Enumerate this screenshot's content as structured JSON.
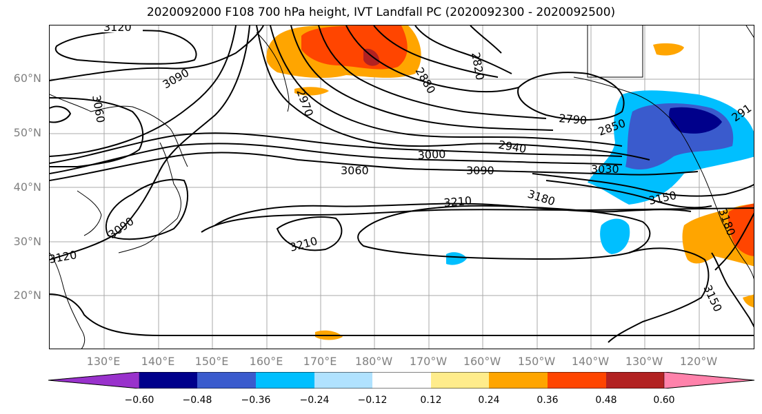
{
  "title": "2020092000 F108 700 hPa height, IVT Landfall PC (2020092300 - 2020092500)",
  "map": {
    "lat_labels": [
      "60°N",
      "50°N",
      "40°N",
      "30°N",
      "20°N"
    ],
    "lon_labels": [
      "130°E",
      "140°E",
      "150°E",
      "160°E",
      "170°E",
      "180°W",
      "170°W",
      "160°W",
      "150°W",
      "140°W",
      "130°W",
      "120°W"
    ],
    "contour_labels": [
      "3120",
      "3090",
      "3060",
      "2970",
      "2880",
      "2820",
      "2790",
      "2850",
      "2940",
      "3000",
      "3060",
      "3090",
      "3030",
      "3210",
      "3180",
      "3150",
      "3210",
      "3090",
      "3120",
      "3150",
      "3180",
      "291"
    ],
    "colors": {
      "grid": "#a8a8a8",
      "contour": "#000000",
      "coast": "#000000"
    }
  },
  "colorbar": {
    "ticks": [
      "−0.60",
      "−0.48",
      "−0.36",
      "−0.24",
      "−0.12",
      "0.12",
      "0.24",
      "0.36",
      "0.48",
      "0.60"
    ],
    "colors": [
      "#9932CC",
      "#00008B",
      "#3A5BCD",
      "#00BFFF",
      "#B0E2FF",
      "#FFFFFF",
      "#FFEC8B",
      "#FFA500",
      "#FF4500",
      "#B22222",
      "#FF82AB"
    ]
  }
}
